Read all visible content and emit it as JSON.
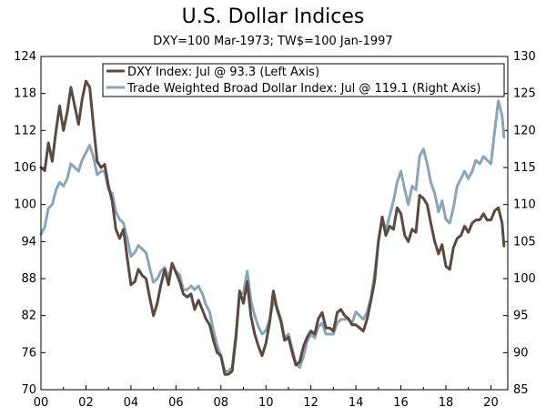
{
  "chart_data": {
    "type": "line",
    "title": "U.S. Dollar Indices",
    "subtitle": "DXY=100 Mar-1973; TW$=100 Jan-1997",
    "x_tick_labels": [
      "00",
      "02",
      "04",
      "06",
      "08",
      "10",
      "12",
      "14",
      "16",
      "18",
      "20"
    ],
    "x_ticks": [
      2000,
      2002,
      2004,
      2006,
      2008,
      2010,
      2012,
      2014,
      2016,
      2018,
      2020
    ],
    "xlim": [
      2000.0,
      2020.75
    ],
    "left_axis": {
      "ylim": [
        70,
        124
      ],
      "ticks": [
        70,
        76,
        82,
        88,
        94,
        100,
        106,
        112,
        118,
        124
      ]
    },
    "right_axis": {
      "ylim": [
        85,
        130
      ],
      "ticks": [
        85,
        90,
        95,
        100,
        105,
        110,
        115,
        120,
        125,
        130
      ]
    },
    "legend_position": "top-center",
    "grid": false,
    "colors": {
      "dxy": "#5a4a42",
      "tw": "#8ba5b8"
    },
    "series": [
      {
        "name": "DXY Index: Jul @ 93.3 (Left Axis)",
        "axis": "left",
        "color": "#5a4a42",
        "points": [
          [
            2000.0,
            106
          ],
          [
            2000.17,
            105.5
          ],
          [
            2000.33,
            110
          ],
          [
            2000.5,
            107
          ],
          [
            2000.67,
            112
          ],
          [
            2000.83,
            116
          ],
          [
            2001.0,
            112
          ],
          [
            2001.17,
            115
          ],
          [
            2001.33,
            119
          ],
          [
            2001.5,
            116
          ],
          [
            2001.67,
            113
          ],
          [
            2001.83,
            117
          ],
          [
            2002.0,
            120
          ],
          [
            2002.17,
            119
          ],
          [
            2002.33,
            113
          ],
          [
            2002.5,
            107
          ],
          [
            2002.67,
            106
          ],
          [
            2002.83,
            106.5
          ],
          [
            2003.0,
            103
          ],
          [
            2003.17,
            100.5
          ],
          [
            2003.33,
            96
          ],
          [
            2003.5,
            94.5
          ],
          [
            2003.67,
            96
          ],
          [
            2003.83,
            91.5
          ],
          [
            2004.0,
            87
          ],
          [
            2004.17,
            87.5
          ],
          [
            2004.33,
            89.5
          ],
          [
            2004.5,
            88.5
          ],
          [
            2004.67,
            88
          ],
          [
            2004.83,
            85
          ],
          [
            2005.0,
            82
          ],
          [
            2005.17,
            84
          ],
          [
            2005.33,
            87
          ],
          [
            2005.5,
            89.5
          ],
          [
            2005.67,
            87
          ],
          [
            2005.83,
            90.5
          ],
          [
            2006.0,
            89
          ],
          [
            2006.17,
            87.5
          ],
          [
            2006.33,
            85.5
          ],
          [
            2006.5,
            85
          ],
          [
            2006.67,
            85.5
          ],
          [
            2006.83,
            83
          ],
          [
            2007.0,
            84.5
          ],
          [
            2007.17,
            83
          ],
          [
            2007.33,
            81.5
          ],
          [
            2007.5,
            80.5
          ],
          [
            2007.67,
            78
          ],
          [
            2007.83,
            76
          ],
          [
            2008.0,
            75.5
          ],
          [
            2008.17,
            72.5
          ],
          [
            2008.33,
            72.5
          ],
          [
            2008.5,
            73
          ],
          [
            2008.67,
            78.5
          ],
          [
            2008.83,
            86
          ],
          [
            2009.0,
            84
          ],
          [
            2009.17,
            87.5
          ],
          [
            2009.33,
            82
          ],
          [
            2009.5,
            79
          ],
          [
            2009.67,
            77
          ],
          [
            2009.83,
            75.5
          ],
          [
            2010.0,
            77.5
          ],
          [
            2010.17,
            81
          ],
          [
            2010.33,
            86
          ],
          [
            2010.5,
            83
          ],
          [
            2010.67,
            81
          ],
          [
            2010.83,
            78
          ],
          [
            2011.0,
            78.5
          ],
          [
            2011.17,
            76
          ],
          [
            2011.33,
            74
          ],
          [
            2011.5,
            74.5
          ],
          [
            2011.67,
            77
          ],
          [
            2011.83,
            78.5
          ],
          [
            2012.0,
            79.5
          ],
          [
            2012.17,
            79
          ],
          [
            2012.33,
            81.5
          ],
          [
            2012.5,
            82.5
          ],
          [
            2012.67,
            80
          ],
          [
            2012.83,
            80
          ],
          [
            2013.0,
            79.5
          ],
          [
            2013.17,
            82.5
          ],
          [
            2013.33,
            83
          ],
          [
            2013.5,
            82
          ],
          [
            2013.67,
            81.5
          ],
          [
            2013.83,
            80.5
          ],
          [
            2014.0,
            80.5
          ],
          [
            2014.17,
            80
          ],
          [
            2014.33,
            79.5
          ],
          [
            2014.5,
            81.5
          ],
          [
            2014.67,
            84.5
          ],
          [
            2014.83,
            87.5
          ],
          [
            2015.0,
            94
          ],
          [
            2015.17,
            98
          ],
          [
            2015.33,
            95
          ],
          [
            2015.5,
            96.5
          ],
          [
            2015.67,
            96
          ],
          [
            2015.83,
            99.5
          ],
          [
            2016.0,
            98.5
          ],
          [
            2016.17,
            95
          ],
          [
            2016.33,
            94
          ],
          [
            2016.5,
            96
          ],
          [
            2016.67,
            95.5
          ],
          [
            2016.83,
            101.5
          ],
          [
            2017.0,
            101
          ],
          [
            2017.17,
            100
          ],
          [
            2017.33,
            97
          ],
          [
            2017.5,
            94
          ],
          [
            2017.67,
            92
          ],
          [
            2017.83,
            93.5
          ],
          [
            2018.0,
            90
          ],
          [
            2018.17,
            89.5
          ],
          [
            2018.33,
            93
          ],
          [
            2018.5,
            94.5
          ],
          [
            2018.67,
            95
          ],
          [
            2018.83,
            96.5
          ],
          [
            2019.0,
            95.5
          ],
          [
            2019.17,
            97
          ],
          [
            2019.33,
            97.5
          ],
          [
            2019.5,
            97.5
          ],
          [
            2019.67,
            98.5
          ],
          [
            2019.83,
            97.5
          ],
          [
            2020.0,
            97.5
          ],
          [
            2020.17,
            99
          ],
          [
            2020.33,
            99.5
          ],
          [
            2020.5,
            97
          ],
          [
            2020.58,
            93.3
          ]
        ]
      },
      {
        "name": "Trade Weighted Broad Dollar Index: Jul @ 119.1 (Right Axis)",
        "axis": "right",
        "color": "#8ba5b8",
        "points": [
          [
            2000.0,
            106
          ],
          [
            2000.17,
            107
          ],
          [
            2000.33,
            109.5
          ],
          [
            2000.5,
            110
          ],
          [
            2000.67,
            112
          ],
          [
            2000.83,
            113
          ],
          [
            2001.0,
            112.5
          ],
          [
            2001.17,
            113.5
          ],
          [
            2001.33,
            115.5
          ],
          [
            2001.5,
            115
          ],
          [
            2001.67,
            114.5
          ],
          [
            2001.83,
            116
          ],
          [
            2002.0,
            117
          ],
          [
            2002.17,
            118
          ],
          [
            2002.33,
            116.5
          ],
          [
            2002.5,
            114
          ],
          [
            2002.67,
            114.5
          ],
          [
            2002.83,
            114.5
          ],
          [
            2003.0,
            112
          ],
          [
            2003.17,
            111.5
          ],
          [
            2003.33,
            109
          ],
          [
            2003.5,
            108
          ],
          [
            2003.67,
            107.5
          ],
          [
            2003.83,
            105.5
          ],
          [
            2004.0,
            103
          ],
          [
            2004.17,
            103.5
          ],
          [
            2004.33,
            104.5
          ],
          [
            2004.5,
            104
          ],
          [
            2004.67,
            103.5
          ],
          [
            2004.83,
            101.5
          ],
          [
            2005.0,
            99.5
          ],
          [
            2005.17,
            100
          ],
          [
            2005.33,
            101
          ],
          [
            2005.5,
            101.5
          ],
          [
            2005.67,
            100
          ],
          [
            2005.83,
            102
          ],
          [
            2006.0,
            101
          ],
          [
            2006.17,
            100.5
          ],
          [
            2006.33,
            98.5
          ],
          [
            2006.5,
            98.5
          ],
          [
            2006.67,
            99
          ],
          [
            2006.83,
            98.5
          ],
          [
            2007.0,
            99
          ],
          [
            2007.17,
            98
          ],
          [
            2007.33,
            96.5
          ],
          [
            2007.5,
            95.5
          ],
          [
            2007.67,
            93
          ],
          [
            2007.83,
            91
          ],
          [
            2008.0,
            89.5
          ],
          [
            2008.17,
            87.5
          ],
          [
            2008.33,
            87.5
          ],
          [
            2008.5,
            88
          ],
          [
            2008.67,
            92.5
          ],
          [
            2008.83,
            98
          ],
          [
            2009.0,
            98
          ],
          [
            2009.17,
            101
          ],
          [
            2009.33,
            97
          ],
          [
            2009.5,
            95
          ],
          [
            2009.67,
            93.5
          ],
          [
            2009.83,
            92.5
          ],
          [
            2010.0,
            93
          ],
          [
            2010.17,
            94.5
          ],
          [
            2010.33,
            97
          ],
          [
            2010.5,
            96
          ],
          [
            2010.67,
            94.5
          ],
          [
            2010.83,
            92
          ],
          [
            2011.0,
            92.5
          ],
          [
            2011.17,
            90.5
          ],
          [
            2011.33,
            88.5
          ],
          [
            2011.5,
            88
          ],
          [
            2011.67,
            89.5
          ],
          [
            2011.83,
            91.5
          ],
          [
            2012.0,
            92.5
          ],
          [
            2012.17,
            92
          ],
          [
            2012.33,
            93.5
          ],
          [
            2012.5,
            94
          ],
          [
            2012.67,
            92.5
          ],
          [
            2012.83,
            92.5
          ],
          [
            2013.0,
            92.5
          ],
          [
            2013.17,
            94
          ],
          [
            2013.33,
            94.5
          ],
          [
            2013.5,
            94.5
          ],
          [
            2013.67,
            94.5
          ],
          [
            2013.83,
            94
          ],
          [
            2014.0,
            95.5
          ],
          [
            2014.17,
            95
          ],
          [
            2014.33,
            94.5
          ],
          [
            2014.5,
            95.5
          ],
          [
            2014.67,
            97.5
          ],
          [
            2014.83,
            100.5
          ],
          [
            2015.0,
            105
          ],
          [
            2015.17,
            108
          ],
          [
            2015.33,
            106.5
          ],
          [
            2015.5,
            108.5
          ],
          [
            2015.67,
            110.5
          ],
          [
            2015.83,
            113
          ],
          [
            2016.0,
            114.5
          ],
          [
            2016.17,
            112
          ],
          [
            2016.33,
            110
          ],
          [
            2016.5,
            112.5
          ],
          [
            2016.67,
            112
          ],
          [
            2016.83,
            116.5
          ],
          [
            2017.0,
            117.5
          ],
          [
            2017.17,
            115.5
          ],
          [
            2017.33,
            113
          ],
          [
            2017.5,
            111.5
          ],
          [
            2017.67,
            109
          ],
          [
            2017.83,
            110.5
          ],
          [
            2018.0,
            108
          ],
          [
            2018.17,
            107.5
          ],
          [
            2018.33,
            109.5
          ],
          [
            2018.5,
            112.5
          ],
          [
            2018.67,
            113.5
          ],
          [
            2018.83,
            114.5
          ],
          [
            2019.0,
            113.5
          ],
          [
            2019.17,
            114.5
          ],
          [
            2019.33,
            116
          ],
          [
            2019.5,
            115.5
          ],
          [
            2019.67,
            116.5
          ],
          [
            2019.83,
            116
          ],
          [
            2020.0,
            115.5
          ],
          [
            2020.17,
            120
          ],
          [
            2020.33,
            124
          ],
          [
            2020.5,
            122
          ],
          [
            2020.58,
            119.1
          ]
        ]
      }
    ]
  }
}
